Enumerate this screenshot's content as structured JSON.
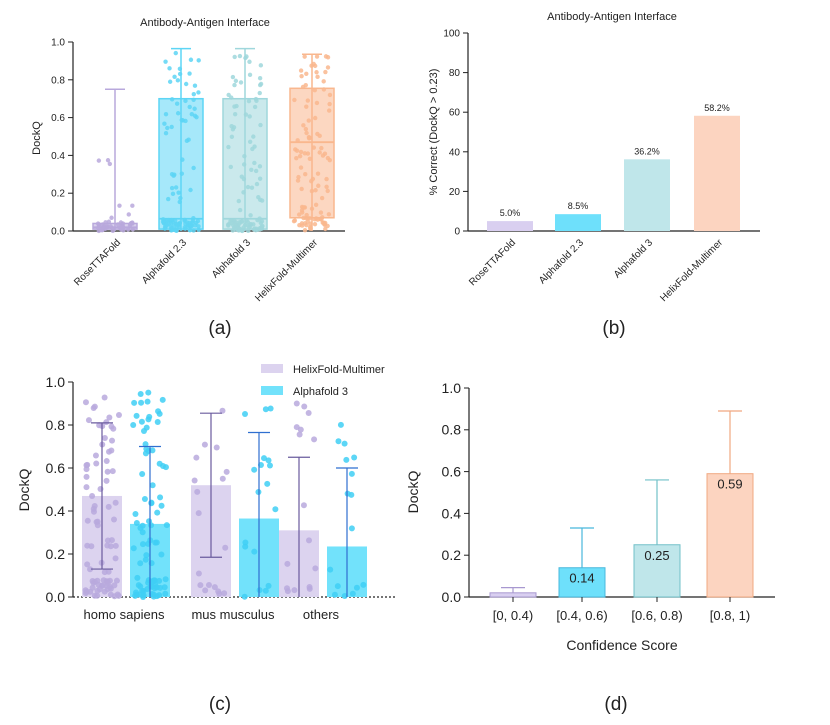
{
  "chart_data": [
    {
      "panel": "a",
      "type": "box",
      "panel_label": "(a)",
      "title": "Antibody-Antigen Interface",
      "xlabel": "",
      "ylabel": "DockQ",
      "ylim": [
        0,
        1.0
      ],
      "yticks": [
        0.0,
        0.2,
        0.4,
        0.6,
        0.8,
        1.0
      ],
      "ytick_labels": [
        "0.0",
        "0.2",
        "0.4",
        "0.6",
        "0.8",
        "1.0"
      ],
      "categories": [
        "RoseTTAFold",
        "Alphafold 2.3",
        "Alphafold 3",
        "HelixFold-Multimer"
      ],
      "boxes": [
        {
          "name": "RoseTTAFold",
          "min": 0.0,
          "q1": 0.01,
          "median": 0.02,
          "q3": 0.04,
          "max": 0.75,
          "color": "#b8a8dc"
        },
        {
          "name": "Alphafold 2.3",
          "min": 0.0,
          "q1": 0.01,
          "median": 0.065,
          "q3": 0.7,
          "max": 0.965,
          "color": "#5dd5f5"
        },
        {
          "name": "Alphafold 3",
          "min": 0.0,
          "q1": 0.01,
          "median": 0.065,
          "q3": 0.7,
          "max": 0.965,
          "color": "#9fd7dc"
        },
        {
          "name": "HelixFold-Multimer",
          "min": 0.0,
          "q1": 0.07,
          "median": 0.47,
          "q3": 0.755,
          "max": 0.935,
          "color": "#f9b78e"
        }
      ]
    },
    {
      "panel": "b",
      "type": "bar",
      "panel_label": "(b)",
      "title": "Antibody-Antigen Interface",
      "xlabel": "",
      "ylabel": "% Correct (DockQ > 0.23)",
      "ylim": [
        0,
        100
      ],
      "yticks": [
        0,
        20,
        40,
        60,
        80,
        100
      ],
      "ytick_labels": [
        "0",
        "20",
        "40",
        "60",
        "80",
        "100"
      ],
      "categories": [
        "RoseTTAFold",
        "Alphafold 2.3",
        "Alphafold 3",
        "HelixFold-Multimer"
      ],
      "values": [
        5.0,
        8.5,
        36.2,
        58.2
      ],
      "value_labels": [
        "5.0%",
        "8.5%",
        "36.2%",
        "58.2%"
      ],
      "colors": [
        "#d9cff0",
        "#6ee0fb",
        "#bfe6ea",
        "#fcd4c0"
      ]
    },
    {
      "panel": "c",
      "type": "bar",
      "panel_label": "(c)",
      "title": "",
      "xlabel": "",
      "ylabel": "DockQ",
      "ylim": [
        0,
        1.0
      ],
      "yticks": [
        0.0,
        0.2,
        0.4,
        0.6,
        0.8,
        1.0
      ],
      "ytick_labels": [
        "0.0",
        "0.2",
        "0.4",
        "0.6",
        "0.8",
        "1.0"
      ],
      "categories": [
        "homo sapiens",
        "mus musculus",
        "others"
      ],
      "legend_position": "top-right",
      "series": [
        {
          "name": "HelixFold-Multimer",
          "values": [
            0.47,
            0.52,
            0.31
          ],
          "err_low": [
            0.13,
            0.185,
            0.0
          ],
          "err_high": [
            0.81,
            0.855,
            0.65
          ],
          "color": "#dcd3ef",
          "point_color": "#b9a9dd",
          "err_color": "#6a5b9e"
        },
        {
          "name": "Alphafold 3",
          "values": [
            0.34,
            0.365,
            0.235
          ],
          "err_low": [
            0.0,
            0.0,
            0.0
          ],
          "err_high": [
            0.7,
            0.765,
            0.6
          ],
          "color": "#72e2fb",
          "point_color": "#3fcff5",
          "err_color": "#2f6fd0"
        }
      ]
    },
    {
      "panel": "d",
      "type": "bar",
      "panel_label": "(d)",
      "title": "",
      "xlabel": "Confidence Score",
      "ylabel": "DockQ",
      "ylim": [
        0,
        1.0
      ],
      "yticks": [
        0.0,
        0.2,
        0.4,
        0.6,
        0.8,
        1.0
      ],
      "ytick_labels": [
        "0.0",
        "0.2",
        "0.4",
        "0.6",
        "0.8",
        "1.0"
      ],
      "categories": [
        "[0, 0.4)",
        "[0.4, 0.6)",
        "[0.6, 0.8)",
        "[0.8, 1)"
      ],
      "values": [
        0.02,
        0.14,
        0.25,
        0.59
      ],
      "err_high": [
        0.045,
        0.33,
        0.56,
        0.89
      ],
      "value_labels": [
        "",
        "0.14",
        "0.25",
        "0.59"
      ],
      "colors": [
        "#d9cff0",
        "#6ee0fb",
        "#bfe6ea",
        "#fcd4c0"
      ],
      "edge_colors": [
        "#a898d0",
        "#48b8dc",
        "#72c0c8",
        "#f0a880"
      ]
    }
  ]
}
